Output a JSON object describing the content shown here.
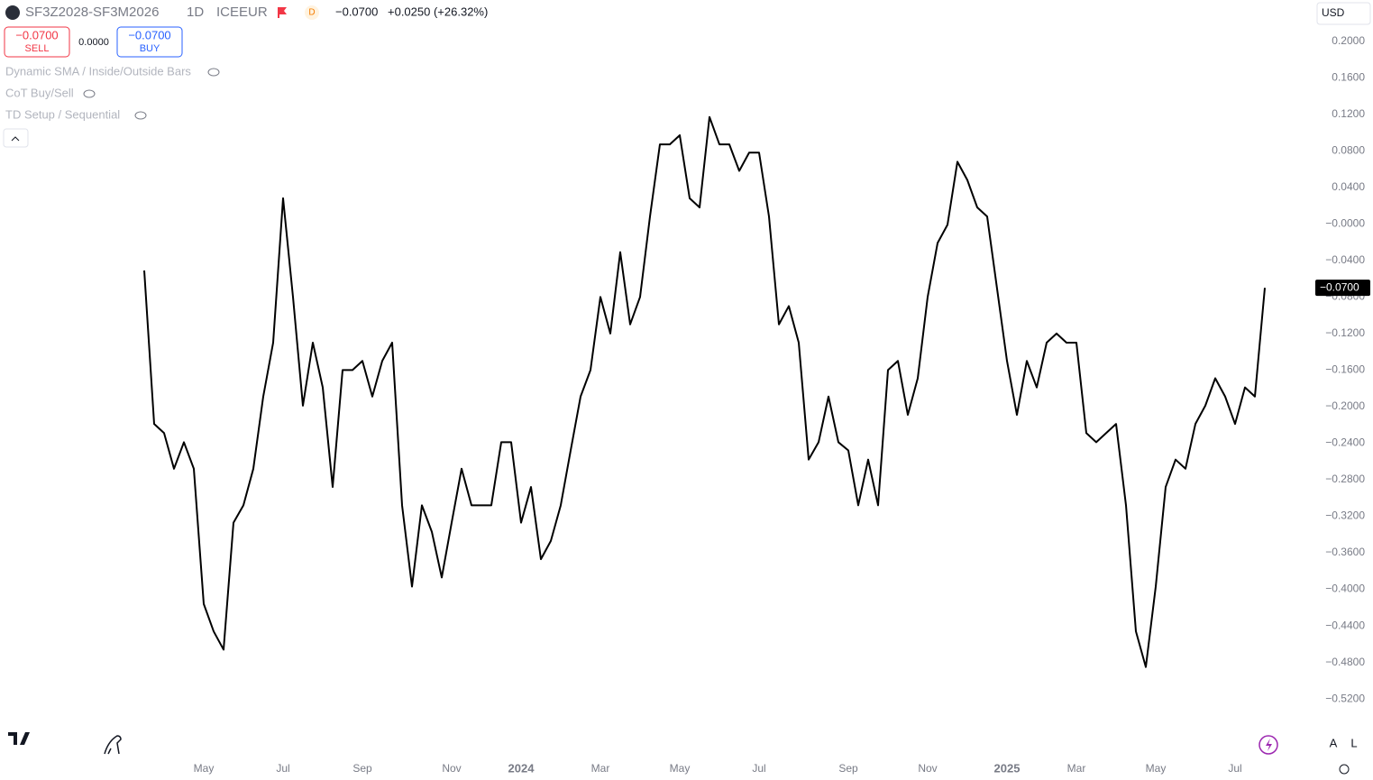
{
  "header": {
    "symbol": "SF3Z2028-SF3M2026",
    "interval": "1D",
    "exchange": "ICEEUR",
    "badge": "D",
    "last": "−0.0700",
    "change": "+0.0250 (+26.32%)",
    "currency": "USD"
  },
  "trade": {
    "sell_price": "−0.0700",
    "sell": "SELL",
    "spread": "0.0000",
    "buy_price": "−0.0700",
    "buy": "BUY"
  },
  "indicators": [
    "Dynamic SMA / Inside/Outside Bars",
    "CoT Buy/Sell",
    "TD Setup / Sequential"
  ],
  "price_tag": "−0.0700",
  "scale_buttons": [
    "A",
    "L"
  ],
  "chart_data": {
    "type": "line",
    "color": "#000000",
    "categories": [
      null,
      null,
      null,
      null,
      null,
      null,
      "May",
      null,
      null,
      null,
      null,
      null,
      null,
      null,
      "Jul",
      null,
      null,
      null,
      null,
      null,
      null,
      null,
      "Sep",
      null,
      null,
      null,
      null,
      null,
      null,
      null,
      null,
      "Nov",
      null,
      null,
      null,
      null,
      null,
      null,
      "2024",
      null,
      null,
      null,
      null,
      null,
      null,
      null,
      "Mar",
      null,
      null,
      null,
      null,
      null,
      null,
      null,
      "May",
      null,
      null,
      null,
      null,
      null,
      null,
      null,
      "Jul",
      null,
      null,
      null,
      null,
      null,
      null,
      null,
      null,
      "Sep",
      null,
      null,
      null,
      null,
      null,
      null,
      null,
      "Nov",
      null,
      null,
      null,
      null,
      null,
      null,
      null,
      "2025",
      null,
      null,
      null,
      null,
      null,
      null,
      "Mar",
      null,
      null,
      null,
      null,
      null,
      null,
      null,
      "May",
      null,
      null,
      null,
      null,
      null,
      null,
      null,
      "Jul",
      null,
      null,
      null
    ],
    "values": [
      -0.051,
      -0.219,
      -0.229,
      -0.268,
      -0.239,
      -0.268,
      -0.416,
      -0.446,
      -0.466,
      -0.327,
      -0.308,
      -0.268,
      -0.189,
      -0.13,
      0.028,
      -0.08,
      -0.199,
      -0.13,
      -0.179,
      -0.288,
      -0.16,
      -0.16,
      -0.15,
      -0.189,
      -0.15,
      -0.13,
      -0.308,
      -0.397,
      -0.308,
      -0.337,
      -0.387,
      -0.327,
      -0.268,
      -0.308,
      -0.308,
      -0.308,
      -0.239,
      -0.239,
      -0.327,
      -0.288,
      -0.367,
      -0.347,
      -0.308,
      -0.248,
      -0.189,
      -0.16,
      -0.08,
      -0.12,
      -0.031,
      -0.11,
      -0.08,
      0.008,
      0.087,
      0.087,
      0.097,
      0.028,
      0.018,
      0.117,
      0.087,
      0.087,
      0.058,
      0.078,
      0.078,
      0.008,
      -0.11,
      -0.09,
      -0.13,
      -0.258,
      -0.239,
      -0.189,
      -0.239,
      -0.248,
      -0.308,
      -0.258,
      -0.308,
      -0.16,
      -0.15,
      -0.209,
      -0.169,
      -0.08,
      -0.021,
      -0.001,
      0.068,
      0.048,
      0.018,
      0.008,
      -0.071,
      -0.15,
      -0.209,
      -0.15,
      -0.179,
      -0.13,
      -0.12,
      -0.13,
      -0.13,
      -0.229,
      -0.239,
      -0.229,
      -0.219,
      -0.308,
      -0.446,
      -0.485,
      -0.397,
      -0.288,
      -0.258,
      -0.268,
      -0.219,
      -0.199,
      -0.169,
      -0.189,
      -0.219,
      -0.179,
      -0.189,
      -0.07
    ],
    "ylim": [
      -0.584,
      0.245
    ],
    "yticks": [
      {
        "value": 0.2,
        "label": "0.2000"
      },
      {
        "value": 0.16,
        "label": "0.1600"
      },
      {
        "value": 0.12,
        "label": "0.1200"
      },
      {
        "value": 0.08,
        "label": "0.0800"
      },
      {
        "value": 0.04,
        "label": "0.0400"
      },
      {
        "value": 0,
        "label": "−0.0000"
      },
      {
        "value": -0.04,
        "label": "−0.0400"
      },
      {
        "value": -0.08,
        "label": "−0.0800"
      },
      {
        "value": -0.12,
        "label": "−0.1200"
      },
      {
        "value": -0.16,
        "label": "−0.1600"
      },
      {
        "value": -0.2,
        "label": "−0.2000"
      },
      {
        "value": -0.24,
        "label": "−0.2400"
      },
      {
        "value": -0.28,
        "label": "−0.2800"
      },
      {
        "value": -0.32,
        "label": "−0.3200"
      },
      {
        "value": -0.36,
        "label": "−0.3600"
      },
      {
        "value": -0.4,
        "label": "−0.4000"
      },
      {
        "value": -0.44,
        "label": "−0.4400"
      },
      {
        "value": -0.48,
        "label": "−0.4800"
      },
      {
        "value": -0.52,
        "label": "−0.5200"
      }
    ],
    "grid": false
  }
}
